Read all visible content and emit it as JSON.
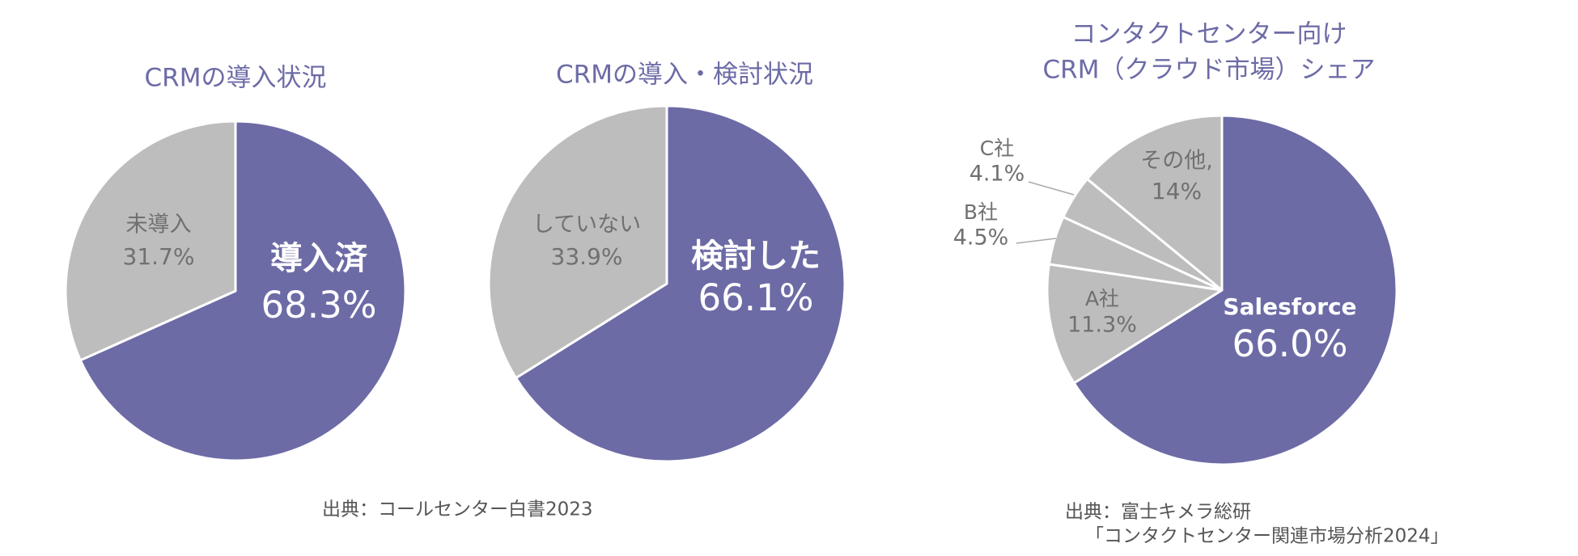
{
  "chart_data": [
    {
      "type": "pie",
      "title": [
        "CRMの導入状況"
      ],
      "categories": [
        "導入済",
        "未導入"
      ],
      "values": [
        68.3,
        31.7
      ],
      "value_labels": [
        "68.3%",
        "31.7%"
      ],
      "colors": [
        "#6c6ba6",
        "#bdbdbd"
      ]
    },
    {
      "type": "pie",
      "title": [
        "CRMの導入・検討状況"
      ],
      "categories": [
        "検討した",
        "していない"
      ],
      "values": [
        66.1,
        33.9
      ],
      "value_labels": [
        "66.1%",
        "33.9%"
      ],
      "colors": [
        "#6c6ba6",
        "#bdbdbd"
      ]
    },
    {
      "type": "pie",
      "title": [
        "コンタクトセンター向け",
        "CRM（クラウド市場）シェア"
      ],
      "categories": [
        "Salesforce",
        "A社",
        "B社",
        "C社",
        "その他,"
      ],
      "values": [
        66.0,
        11.3,
        4.5,
        4.1,
        14
      ],
      "value_labels": [
        "66.0%",
        "11.3%",
        "4.5%",
        "4.1%",
        "14%"
      ],
      "colors": [
        "#6c6ba6",
        "#bdbdbd",
        "#bdbdbd",
        "#bdbdbd",
        "#bdbdbd"
      ]
    }
  ],
  "notes": [
    "出典：コールセンター白書2023",
    "出典：富士キメラ総研",
    "「コンタクトセンター関連市場分析2024」"
  ]
}
